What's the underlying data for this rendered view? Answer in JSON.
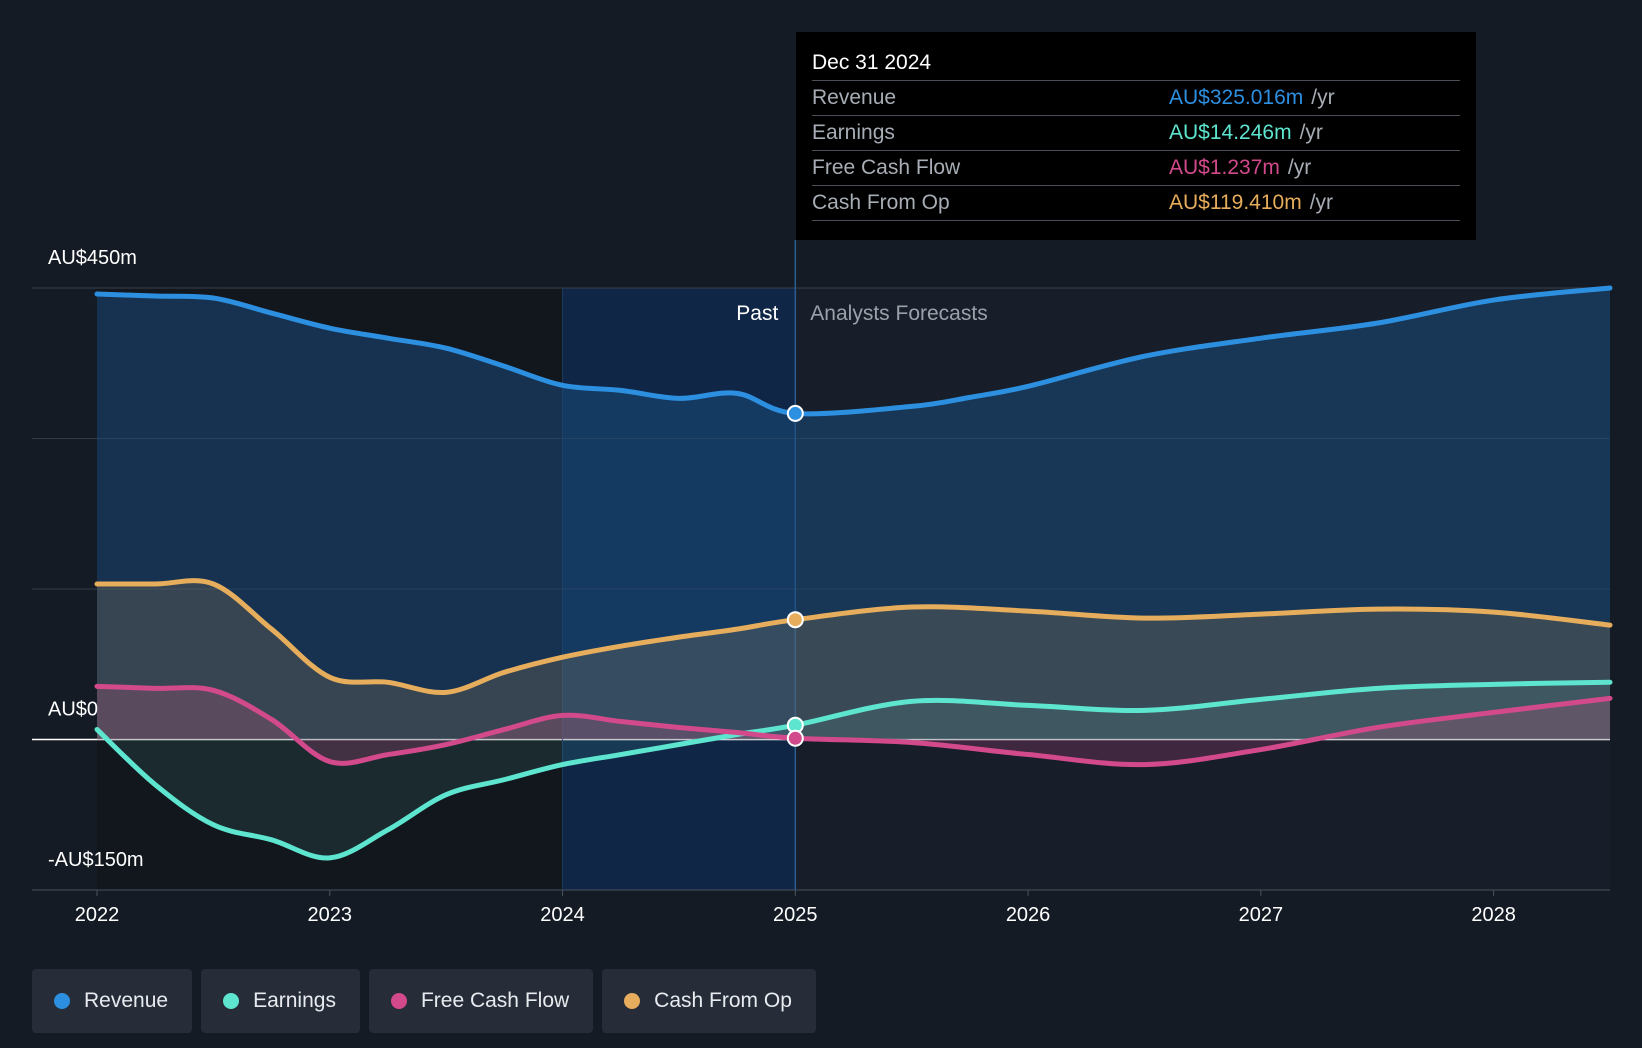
{
  "chart_data": {
    "type": "area",
    "y_axis": {
      "unit": "AU$ millions",
      "range": [
        -150,
        450
      ],
      "tick_labels": [
        "AU$450m",
        "AU$0",
        "-AU$150m"
      ]
    },
    "x_axis": {
      "range": [
        2022,
        2028.5
      ],
      "tick_labels": [
        "2022",
        "2023",
        "2024",
        "2025",
        "2026",
        "2027",
        "2028"
      ]
    },
    "regions": {
      "past_label": "Past",
      "forecast_label": "Analysts Forecasts",
      "divider_x": 2025.0,
      "highlight_start_x": 2024.0
    },
    "grid": true,
    "legend_position": "bottom-left",
    "series": [
      {
        "name": "Revenue",
        "color": "#2d8fe0",
        "points": [
          [
            2022.0,
            444
          ],
          [
            2022.25,
            442
          ],
          [
            2022.5,
            440
          ],
          [
            2022.75,
            425
          ],
          [
            2023.0,
            410
          ],
          [
            2023.25,
            400
          ],
          [
            2023.5,
            390
          ],
          [
            2023.75,
            372
          ],
          [
            2024.0,
            353
          ],
          [
            2024.25,
            348
          ],
          [
            2024.5,
            340
          ],
          [
            2024.75,
            345
          ],
          [
            2025.0,
            325
          ],
          [
            2025.5,
            332
          ],
          [
            2025.75,
            341
          ],
          [
            2026.0,
            352
          ],
          [
            2026.5,
            382
          ],
          [
            2027.0,
            400
          ],
          [
            2027.5,
            415
          ],
          [
            2028.0,
            438
          ],
          [
            2028.5,
            450
          ]
        ]
      },
      {
        "name": "Earnings",
        "color": "#5ee5cf",
        "points": [
          [
            2022.0,
            10
          ],
          [
            2022.25,
            -45
          ],
          [
            2022.5,
            -85
          ],
          [
            2022.75,
            -100
          ],
          [
            2023.0,
            -118
          ],
          [
            2023.25,
            -90
          ],
          [
            2023.5,
            -55
          ],
          [
            2023.75,
            -40
          ],
          [
            2024.0,
            -25
          ],
          [
            2024.25,
            -15
          ],
          [
            2024.5,
            -5
          ],
          [
            2024.75,
            5
          ],
          [
            2025.0,
            14.246
          ],
          [
            2025.5,
            38
          ],
          [
            2026.0,
            34
          ],
          [
            2026.5,
            29
          ],
          [
            2027.0,
            40
          ],
          [
            2027.5,
            51
          ],
          [
            2028.0,
            55
          ],
          [
            2028.5,
            57
          ]
        ]
      },
      {
        "name": "Free Cash Flow",
        "color": "#d24a8b",
        "points": [
          [
            2022.0,
            53
          ],
          [
            2022.25,
            51
          ],
          [
            2022.5,
            49
          ],
          [
            2022.75,
            20
          ],
          [
            2023.0,
            -22
          ],
          [
            2023.25,
            -15
          ],
          [
            2023.5,
            -5
          ],
          [
            2023.75,
            10
          ],
          [
            2024.0,
            24
          ],
          [
            2024.25,
            18
          ],
          [
            2024.5,
            12
          ],
          [
            2024.75,
            7
          ],
          [
            2025.0,
            1.237
          ],
          [
            2025.5,
            -3
          ],
          [
            2026.0,
            -15
          ],
          [
            2026.5,
            -25
          ],
          [
            2027.0,
            -10
          ],
          [
            2027.5,
            12
          ],
          [
            2028.0,
            27
          ],
          [
            2028.5,
            41
          ]
        ]
      },
      {
        "name": "Cash From Op",
        "color": "#e6ad5c",
        "points": [
          [
            2022.0,
            155
          ],
          [
            2022.25,
            155
          ],
          [
            2022.5,
            155
          ],
          [
            2022.75,
            110
          ],
          [
            2023.0,
            62
          ],
          [
            2023.25,
            57
          ],
          [
            2023.5,
            47
          ],
          [
            2023.75,
            67
          ],
          [
            2024.0,
            82
          ],
          [
            2024.25,
            93
          ],
          [
            2024.5,
            102
          ],
          [
            2024.75,
            110
          ],
          [
            2025.0,
            119.41
          ],
          [
            2025.5,
            132
          ],
          [
            2026.0,
            128
          ],
          [
            2026.5,
            121
          ],
          [
            2027.0,
            125
          ],
          [
            2027.5,
            130
          ],
          [
            2028.0,
            127
          ],
          [
            2028.5,
            114
          ]
        ]
      }
    ]
  },
  "tooltip": {
    "date": "Dec 31 2024",
    "unit": "/yr",
    "rows": [
      {
        "label": "Revenue",
        "value": "AU$325.016m",
        "color": "#2d8fe0"
      },
      {
        "label": "Earnings",
        "value": "AU$14.246m",
        "color": "#5ee5cf"
      },
      {
        "label": "Free Cash Flow",
        "value": "AU$1.237m",
        "color": "#d24a8b"
      },
      {
        "label": "Cash From Op",
        "value": "AU$119.410m",
        "color": "#e6ad5c"
      }
    ]
  },
  "legend": [
    {
      "label": "Revenue",
      "color": "#2d8fe0"
    },
    {
      "label": "Earnings",
      "color": "#5ee5cf"
    },
    {
      "label": "Free Cash Flow",
      "color": "#d24a8b"
    },
    {
      "label": "Cash From Op",
      "color": "#e6ad5c"
    }
  ]
}
